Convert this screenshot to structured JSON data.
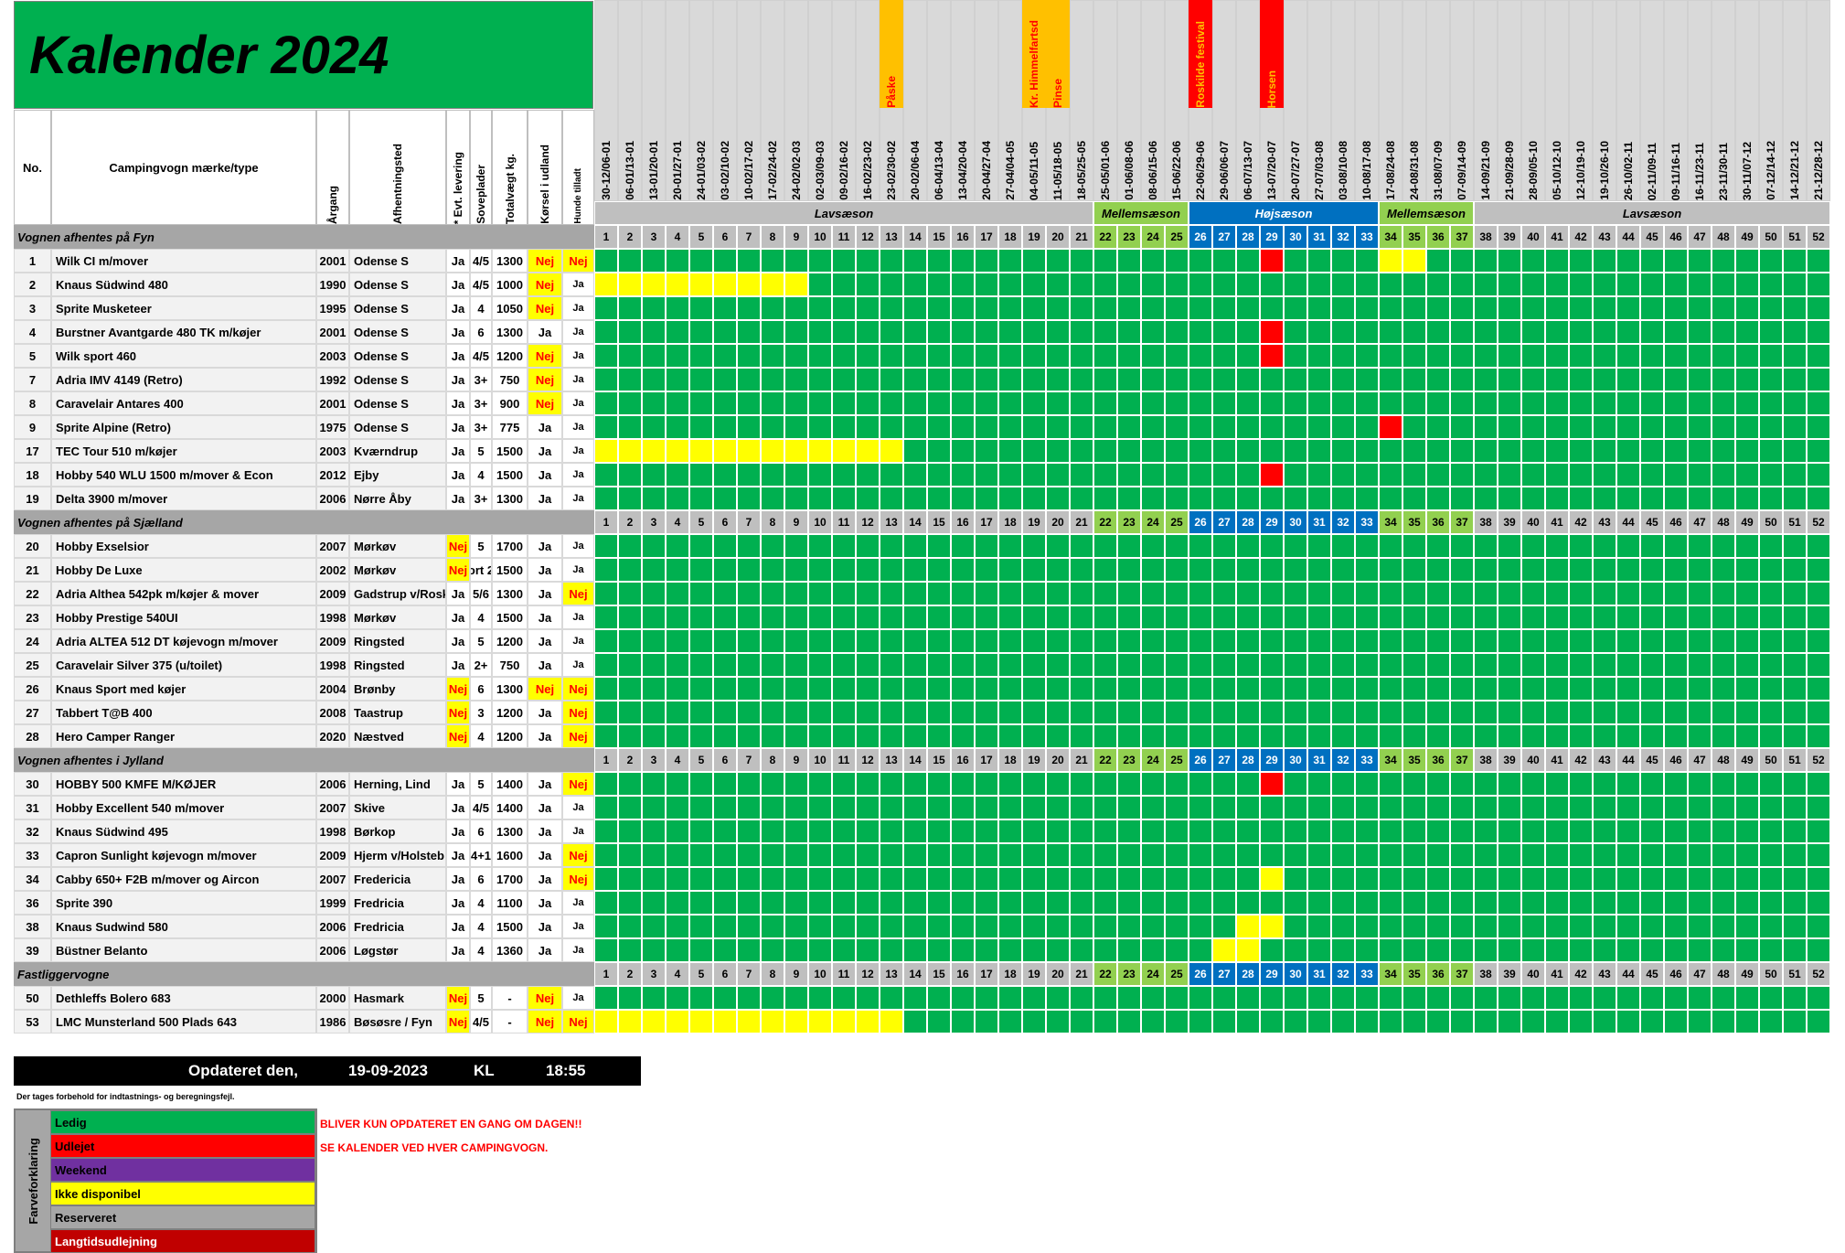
{
  "title": "Kalender 2024",
  "headers": {
    "no": "No.",
    "type": "Campingvogn mærke/type",
    "year": "Årgang",
    "pickup": "Afhentningsted",
    "delivery": "* Evt. levering",
    "beds": "Soveplader",
    "weight": "Totalvægt kg.",
    "abroad": "Kørsel i udland",
    "dogs": "Hunde tilladt"
  },
  "dates": [
    "30-12/06-01",
    "06-01/13-01",
    "13-01/20-01",
    "20-01/27-01",
    "24-01/03-02",
    "03-02/10-02",
    "10-02/17-02",
    "17-02/24-02",
    "24-02/02-03",
    "02-03/09-03",
    "09-02/16-02",
    "16-02/23-02",
    "23-02/30-02",
    "20-02/06-04",
    "06-04/13-04",
    "13-04/20-04",
    "20-04/27-04",
    "27-04/04-05",
    "04-05/11-05",
    "11-05/18-05",
    "18-05/25-05",
    "25-05/01-06",
    "01-06/08-06",
    "08-06/15-06",
    "15-06/22-06",
    "22-06/29-06",
    "29-06/06-07",
    "06-07/13-07",
    "13-07/20-07",
    "20-07/27-07",
    "27-07/03-08",
    "03-08/10-08",
    "10-08/17-08",
    "17-08/24-08",
    "24-08/31-08",
    "31-08/07-09",
    "07-09/14-09",
    "14-09/21-09",
    "21-09/28-09",
    "28-09/05-10",
    "05-10/12-10",
    "12-10/19-10",
    "19-10/26-10",
    "26-10/02-11",
    "02-11/09-11",
    "09-11/16-11",
    "16-11/23-11",
    "23-11/30-11",
    "30-11/07-12",
    "07-12/14-12",
    "14-12/21-12",
    "21-12/28-12"
  ],
  "events": [
    {
      "week": 13,
      "label": "Påske",
      "color": "#ffc000"
    },
    {
      "week": 19,
      "label": "Kr. Himmelfartsd",
      "color": "#ffc000"
    },
    {
      "week": 20,
      "label": "Pinse",
      "color": "#ffc000"
    },
    {
      "week": 26,
      "label": "Roskilde festival",
      "color": "#ff0000"
    },
    {
      "week": 29,
      "label": "Horsen",
      "color": "#ff0000"
    }
  ],
  "seasons": [
    {
      "label": "Lavsæson",
      "from": 1,
      "to": 21,
      "color": "#bfbfbf"
    },
    {
      "label": "Mellemsæson",
      "from": 22,
      "to": 25,
      "color": "#92d050"
    },
    {
      "label": "Højsæson",
      "from": 26,
      "to": 33,
      "color": "#0070c0"
    },
    {
      "label": "Mellemsæson",
      "from": 34,
      "to": 37,
      "color": "#92d050"
    },
    {
      "label": "Lavsæson",
      "from": 38,
      "to": 52,
      "color": "#bfbfbf"
    }
  ],
  "groups": [
    {
      "title": "Vognen afhentes på Fyn",
      "rows": [
        {
          "no": "1",
          "type": "Wilk CI m/mover",
          "year": "2001",
          "pickup": "Odense S",
          "delivery": "Ja",
          "beds": "4/5",
          "weight": "1300",
          "abroad": "Nej",
          "dogs": "Nej",
          "marks": {
            "29": "R",
            "34": "Y",
            "35": "Y"
          }
        },
        {
          "no": "2",
          "type": "Knaus Südwind  480",
          "year": "1990",
          "pickup": "Odense S",
          "delivery": "Ja",
          "beds": "4/5",
          "weight": "1000",
          "abroad": "Nej",
          "dogs": "Ja",
          "marks": {
            "1": "Y",
            "2": "Y",
            "3": "Y",
            "4": "Y",
            "5": "Y",
            "6": "Y",
            "7": "Y",
            "8": "Y",
            "9": "Y"
          }
        },
        {
          "no": "3",
          "type": "Sprite Musketeer",
          "year": "1995",
          "pickup": "Odense S",
          "delivery": "Ja",
          "beds": "4",
          "weight": "1050",
          "abroad": "Nej",
          "dogs": "Ja",
          "marks": {}
        },
        {
          "no": "4",
          "type": "Burstner Avantgarde 480 TK m/køjer",
          "year": "2001",
          "pickup": "Odense S",
          "delivery": "Ja",
          "beds": "6",
          "weight": "1300",
          "abroad": "Ja",
          "dogs": "Ja",
          "marks": {
            "29": "R"
          }
        },
        {
          "no": "5",
          "type": "Wilk sport 460",
          "year": "2003",
          "pickup": "Odense S",
          "delivery": "Ja",
          "beds": "4/5",
          "weight": "1200",
          "abroad": "Nej",
          "dogs": "Ja",
          "marks": {
            "29": "R"
          }
        },
        {
          "no": "7",
          "type": "Adria IMV 4149 (Retro)",
          "year": "1992",
          "pickup": "Odense S",
          "delivery": "Ja",
          "beds": "3+",
          "weight": "750",
          "abroad": "Nej",
          "dogs": "Ja",
          "marks": {}
        },
        {
          "no": "8",
          "type": "Caravelair Antares 400",
          "year": "2001",
          "pickup": "Odense S",
          "delivery": "Ja",
          "beds": "3+",
          "weight": "900",
          "abroad": "Nej",
          "dogs": "Ja",
          "marks": {}
        },
        {
          "no": "9",
          "type": "Sprite Alpine (Retro)",
          "year": "1975",
          "pickup": "Odense S",
          "delivery": "Ja",
          "beds": "3+",
          "weight": "775",
          "abroad": "Ja",
          "dogs": "Ja",
          "marks": {
            "34": "R"
          }
        },
        {
          "no": "17",
          "type": "TEC Tour 510 m/køjer",
          "year": "2003",
          "pickup": "Kværndrup",
          "delivery": "Ja",
          "beds": "5",
          "weight": "1500",
          "abroad": "Ja",
          "dogs": "Ja",
          "marks": {
            "1": "Y",
            "2": "Y",
            "3": "Y",
            "4": "Y",
            "5": "Y",
            "6": "Y",
            "7": "Y",
            "8": "Y",
            "9": "Y",
            "10": "Y",
            "11": "Y",
            "12": "Y",
            "13": "Y"
          }
        },
        {
          "no": "18",
          "type": "Hobby 540 WLU 1500 m/mover & Econ",
          "year": "2012",
          "pickup": "Ejby",
          "delivery": "Ja",
          "beds": "4",
          "weight": "1500",
          "abroad": "Ja",
          "dogs": "Ja",
          "marks": {
            "29": "R"
          }
        },
        {
          "no": "19",
          "type": "Delta 3900 m/mover",
          "year": "2006",
          "pickup": "Nørre Åby",
          "delivery": "Ja",
          "beds": "3+",
          "weight": "1300",
          "abroad": "Ja",
          "dogs": "Ja",
          "marks": {}
        }
      ]
    },
    {
      "title": "Vognen afhentes på Sjælland",
      "rows": [
        {
          "no": "20",
          "type": "Hobby Exselsior",
          "year": "2007",
          "pickup": "Mørkøv",
          "delivery": "Nej",
          "beds": "5",
          "weight": "1700",
          "abroad": "Ja",
          "dogs": "Ja",
          "marks": {}
        },
        {
          "no": "21",
          "type": "Hobby De Luxe",
          "year": "2002",
          "pickup": "Mørkøv",
          "delivery": "Nej",
          "beds": "ort 2",
          "weight": "1500",
          "abroad": "Ja",
          "dogs": "Ja",
          "marks": {}
        },
        {
          "no": "22",
          "type": "Adria Althea 542pk m/køjer & mover",
          "year": "2009",
          "pickup": "Gadstrup v/Rosk",
          "delivery": "Ja",
          "beds": "5/6",
          "weight": "1300",
          "abroad": "Ja",
          "dogs": "Nej",
          "marks": {}
        },
        {
          "no": "23",
          "type": "Hobby Prestige 540UI",
          "year": "1998",
          "pickup": "Mørkøv",
          "delivery": "Ja",
          "beds": "4",
          "weight": "1500",
          "abroad": "Ja",
          "dogs": "Ja",
          "marks": {}
        },
        {
          "no": "24",
          "type": "Adria ALTEA 512 DT  køjevogn m/mover",
          "year": "2009",
          "pickup": "Ringsted",
          "delivery": "Ja",
          "beds": "5",
          "weight": "1200",
          "abroad": "Ja",
          "dogs": "Ja",
          "marks": {}
        },
        {
          "no": "25",
          "type": "Caravelair Silver 375 (u/toilet)",
          "year": "1998",
          "pickup": "Ringsted",
          "delivery": "Ja",
          "beds": "2+",
          "weight": "750",
          "abroad": "Ja",
          "dogs": "Ja",
          "marks": {}
        },
        {
          "no": "26",
          "type": "Knaus Sport med køjer",
          "year": "2004",
          "pickup": "Brønby",
          "delivery": "Nej",
          "beds": "6",
          "weight": "1300",
          "abroad": "Nej",
          "dogs": "Nej",
          "marks": {}
        },
        {
          "no": "27",
          "type": "Tabbert T@B 400",
          "year": "2008",
          "pickup": "Taastrup",
          "delivery": "Nej",
          "beds": "3",
          "weight": "1200",
          "abroad": "Ja",
          "dogs": "Nej",
          "marks": {}
        },
        {
          "no": "28",
          "type": "Hero Camper Ranger",
          "year": "2020",
          "pickup": "Næstved",
          "delivery": "Nej",
          "beds": "4",
          "weight": "1200",
          "abroad": "Ja",
          "dogs": "Nej",
          "marks": {}
        }
      ]
    },
    {
      "title": "Vognen afhentes i Jylland",
      "rows": [
        {
          "no": "30",
          "type": "HOBBY 500 KMFE M/KØJER",
          "year": "2006",
          "pickup": "Herning, Lind",
          "delivery": "Ja",
          "beds": "5",
          "weight": "1400",
          "abroad": "Ja",
          "dogs": "Nej",
          "marks": {
            "29": "R"
          }
        },
        {
          "no": "31",
          "type": "Hobby Excellent 540 m/mover",
          "year": "2007",
          "pickup": "Skive",
          "delivery": "Ja",
          "beds": "4/5",
          "weight": "1400",
          "abroad": "Ja",
          "dogs": "Ja",
          "marks": {}
        },
        {
          "no": "32",
          "type": "Knaus Südwind 495",
          "year": "1998",
          "pickup": "Børkop",
          "delivery": "Ja",
          "beds": "6",
          "weight": "1300",
          "abroad": "Ja",
          "dogs": "Ja",
          "marks": {}
        },
        {
          "no": "33",
          "type": "Capron Sunlight køjevogn m/mover",
          "year": "2009",
          "pickup": "Hjerm v/Holsteb",
          "delivery": "Ja",
          "beds": "4+1",
          "weight": "1600",
          "abroad": "Ja",
          "dogs": "Nej",
          "marks": {}
        },
        {
          "no": "34",
          "type": "Cabby 650+ F2B m/mover og Aircon",
          "year": "2007",
          "pickup": " Fredericia",
          "delivery": "Ja",
          "beds": "6",
          "weight": "1700",
          "abroad": "Ja",
          "dogs": "Nej",
          "marks": {
            "29": "Y"
          }
        },
        {
          "no": "36",
          "type": "Sprite 390",
          "year": "1999",
          "pickup": "Fredricia",
          "delivery": "Ja",
          "beds": "4",
          "weight": "1100",
          "abroad": "Ja",
          "dogs": "Ja",
          "marks": {}
        },
        {
          "no": "38",
          "type": "Knaus Sudwind 580",
          "year": "2006",
          "pickup": "Fredricia",
          "delivery": "Ja",
          "beds": "4",
          "weight": "1500",
          "abroad": "Ja",
          "dogs": "Ja",
          "marks": {
            "28": "Y",
            "29": "Y"
          }
        },
        {
          "no": "39",
          "type": "Büstner Belanto",
          "year": "2006",
          "pickup": "Løgstør",
          "delivery": "Ja",
          "beds": "4",
          "weight": "1360",
          "abroad": "Ja",
          "dogs": "Ja",
          "marks": {
            "27": "Y",
            "28": "Y"
          }
        }
      ]
    },
    {
      "title": "Fastliggervogne",
      "rows": [
        {
          "no": "50",
          "type": "Dethleffs Bolero 683",
          "year": "2000",
          "pickup": "Hasmark",
          "delivery": "Nej",
          "beds": "5",
          "weight": "-",
          "abroad": "Nej",
          "dogs": "Ja",
          "marks": {}
        },
        {
          "no": "53",
          "type": "LMC Munsterland 500 Plads 643",
          "year": "1986",
          "pickup": "Bøsøsre / Fyn",
          "delivery": "Nej",
          "beds": "4/5",
          "weight": "-",
          "abroad": "Nej",
          "dogs": "Nej",
          "marks": {
            "1": "Y",
            "2": "Y",
            "3": "Y",
            "4": "Y",
            "5": "Y",
            "6": "Y",
            "7": "Y",
            "8": "Y",
            "9": "Y",
            "10": "Y",
            "11": "Y",
            "12": "Y",
            "13": "Y"
          }
        }
      ]
    }
  ],
  "updated": {
    "label": "Opdateret den,",
    "date": "19-09-2023",
    "kl": "KL",
    "time": "18:55"
  },
  "disclaimer": "Der tages forbehold for indtastnings- og beregningsfejl.",
  "legend": {
    "title": "Farveforklaring",
    "items": [
      {
        "label": "Ledig",
        "color": "#00b050",
        "text_color": "#000000"
      },
      {
        "label": "Udlejet",
        "color": "#ff0000",
        "text_color": "#000000"
      },
      {
        "label": "Weekend",
        "color": "#7030a0",
        "text_color": "#000000"
      },
      {
        "label": "Ikke disponibel",
        "color": "#ffff00",
        "text_color": "#000000"
      },
      {
        "label": "Reserveret",
        "color": "#a6a6a6",
        "text_color": "#000000"
      },
      {
        "label": "Langtidsudlejning",
        "color": "#c00000",
        "text_color": "#ffffff"
      }
    ]
  },
  "notes": [
    "BLIVER KUN OPDATERET EN GANG OM DAGEN!!",
    "SE KALENDER VED HVER CAMPINGVOGN."
  ],
  "colors": {
    "free": "#00b050",
    "rented": "#ff0000",
    "unavailable": "#ffff00",
    "highseason": "#0070c0",
    "midseason": "#92d050",
    "lowseason": "#bfbfbf"
  }
}
